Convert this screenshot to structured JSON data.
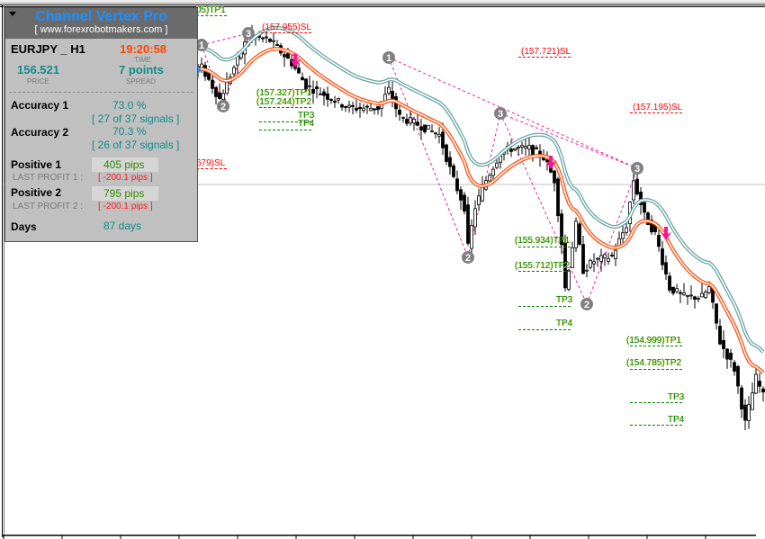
{
  "panel": {
    "title": "Channel Vertex Pro",
    "website": "[ www.forexrobotmakers.com ]",
    "symbol": "EURJPY _ H1",
    "time": "19:20:58",
    "time_label": "TIME",
    "price": "156.521",
    "price_label": "PRICE",
    "spread": "7 points",
    "spread_label": "SPREAD",
    "accuracy1_label": "Accuracy 1",
    "accuracy1_value": "73.0 %",
    "accuracy1_signals": "[ 27 of 37 signals ]",
    "accuracy2_label": "Accuracy 2",
    "accuracy2_value": "70.3 %",
    "accuracy2_signals": "[ 26 of 37 signals ]",
    "positive1_label": "Positive 1",
    "positive1_value": "405 pips",
    "last_profit1_label": "LAST PROFIT 1 :",
    "last_profit1_value": "[ -200.1 pips ]",
    "positive2_label": "Positive 2",
    "positive2_value": "795 pips",
    "last_profit2_label": "LAST PROFIT 2 :",
    "last_profit2_value": "[ -200.1 pips ]",
    "days_label": "Days",
    "days_value": "87 days"
  },
  "levels": {
    "partial_tp1": "05)TP1",
    "partial_sl": "679)SL",
    "sl_a": "(157.955)SL",
    "tp1_a": "(157.327)TP1",
    "tp2_a": "(157.244)TP2",
    "tp3_a": "TP3",
    "tp4_a": "TP4",
    "sl_b": "(157.721)SL",
    "tp1_b": "(155.934)TP1",
    "tp2_b": "(155.712)TP2",
    "tp3_b": "TP3",
    "tp4_b": "TP4",
    "sl_c": "(157.195)SL",
    "tp1_c": "(154.999)TP1",
    "tp2_c": "(154.785)TP2",
    "tp3_c": "TP3",
    "tp4_c": "TP4"
  },
  "colors": {
    "title": "#1e90ff",
    "time": "#ff4500",
    "teal_text": "#138a8a",
    "sl": "#ff0000",
    "tp": "#008000",
    "upper_channel": "#5f9ea0",
    "lower_channel": "#ff4500",
    "zigzag": "#ff1493",
    "signal_arrow": "#ff1493",
    "marker": "#808080"
  },
  "chart_data": {
    "type": "candlestick",
    "current_price": 156.521,
    "price_path": [
      [
        0,
        157.443
      ],
      [
        54,
        157.571
      ],
      [
        59,
        157.272
      ],
      [
        67,
        157.87
      ],
      [
        73,
        157.827
      ],
      [
        79,
        157.613
      ],
      [
        83,
        157.4
      ],
      [
        88,
        157.315
      ],
      [
        95,
        157.186
      ],
      [
        103,
        157.186
      ],
      [
        106,
        157.357
      ],
      [
        109,
        157.101
      ],
      [
        115,
        157.016
      ],
      [
        120,
        156.93
      ],
      [
        124,
        156.503
      ],
      [
        127,
        156.247
      ],
      [
        128,
        155.863
      ],
      [
        130,
        156.247
      ],
      [
        133,
        156.503
      ],
      [
        137,
        156.759
      ],
      [
        140,
        156.802
      ],
      [
        145,
        156.802
      ],
      [
        149,
        156.717
      ],
      [
        152,
        156.503
      ],
      [
        154,
        155.905
      ],
      [
        155,
        155.478
      ],
      [
        158,
        156.076
      ],
      [
        160,
        155.649
      ],
      [
        163,
        155.735
      ],
      [
        168,
        155.777
      ],
      [
        172,
        156.076
      ],
      [
        174,
        156.503
      ],
      [
        177,
        156.162
      ],
      [
        180,
        155.991
      ],
      [
        184,
        155.478
      ],
      [
        188,
        155.393
      ],
      [
        193,
        155.393
      ],
      [
        195,
        155.478
      ],
      [
        198,
        154.966
      ],
      [
        202,
        154.71
      ],
      [
        205,
        154.197
      ],
      [
        208,
        154.624
      ],
      [
        210,
        154.454
      ]
    ],
    "zigzag_points": [
      {
        "label": "1",
        "bar": 54,
        "price": 157.784
      },
      {
        "label": "2",
        "bar": 60,
        "price": 157.204
      },
      {
        "label": "3",
        "bar": 67,
        "price": 157.895
      },
      {
        "label": "1",
        "bar": 106,
        "price": 157.665
      },
      {
        "label": "2",
        "bar": 128,
        "price": 155.769
      },
      {
        "label": "3",
        "bar": 137,
        "price": 157.135
      },
      {
        "label": "2",
        "bar": 161,
        "price": 155.325
      },
      {
        "label": "3",
        "bar": 175,
        "price": 156.614
      }
    ],
    "zigzag_segments": [
      [
        0,
        1
      ],
      [
        1,
        2
      ],
      [
        0,
        2
      ],
      [
        3,
        4
      ],
      [
        4,
        5
      ],
      [
        5,
        6
      ],
      [
        6,
        7
      ],
      [
        3,
        7
      ],
      [
        5,
        7
      ]
    ],
    "sell_signals": [
      {
        "bar": 80,
        "price": 157.613
      },
      {
        "bar": 151,
        "price": 156.648
      },
      {
        "bar": 183,
        "price": 155.974
      }
    ]
  }
}
